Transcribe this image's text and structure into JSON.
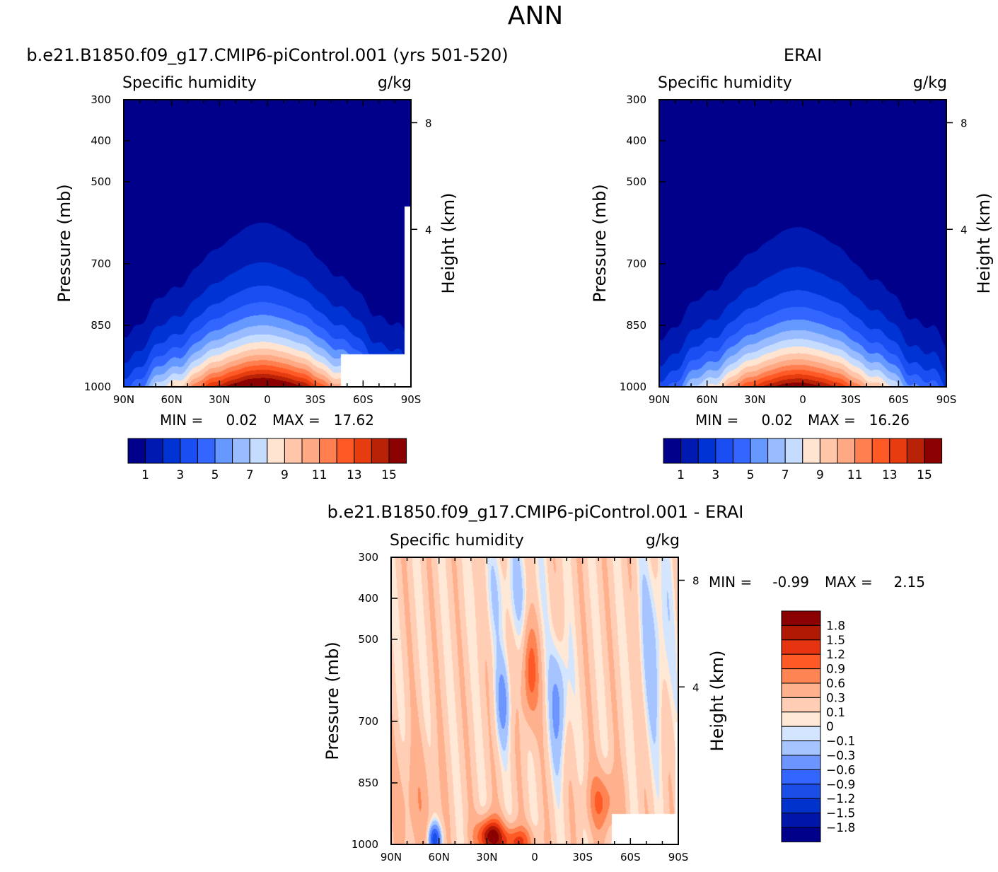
{
  "figure_title": "ANN",
  "colors": {
    "abs_palette": [
      "#00008b",
      "#0019b0",
      "#0033d4",
      "#1a4df2",
      "#3366ff",
      "#6699ff",
      "#99bbff",
      "#c6dcff",
      "#ffe4d2",
      "#ffc6aa",
      "#ffa884",
      "#ff7f50",
      "#ff5a26",
      "#e63c0f",
      "#b82207",
      "#8b0000"
    ],
    "diff_palette": [
      "#00008b",
      "#0016a8",
      "#0033cc",
      "#1a4ee6",
      "#3366ff",
      "#6c95ff",
      "#a6c4ff",
      "#d4e6ff",
      "#ffe8d6",
      "#ffceb4",
      "#ffb08c",
      "#ff8454",
      "#ff5a26",
      "#e63410",
      "#b01a05",
      "#8b0000"
    ]
  },
  "chart_data": [
    {
      "type": "heatmap",
      "panel": "model",
      "case_title": "b.e21.B1850.f09_g17.CMIP6-piControl.001 (yrs 501-520)",
      "variable": "Specific humidity",
      "units": "g/kg",
      "ylabel": "Pressure (mb)",
      "y2label": "Height (km)",
      "x_ticks": [
        "90N",
        "60N",
        "30N",
        "0",
        "30S",
        "60S",
        "90S"
      ],
      "y_ticks": [
        "300",
        "400",
        "500",
        "700",
        "850",
        "1000"
      ],
      "y2_ticks": [
        "8",
        "4"
      ],
      "xlim": [
        90,
        -90
      ],
      "ylim_mb": [
        1000,
        300
      ],
      "min_label": "MIN =",
      "min_value": "0.02",
      "max_label": "MAX =",
      "max_value": "17.62",
      "levels": [
        1,
        2,
        3,
        4,
        5,
        6,
        7,
        8,
        9,
        10,
        11,
        12,
        13,
        14,
        15
      ],
      "colorbar_labels": [
        "1",
        "3",
        "5",
        "7",
        "9",
        "11",
        "13",
        "15"
      ],
      "peak": 17.62,
      "missing_region": true
    },
    {
      "type": "heatmap",
      "panel": "obs",
      "case_title": "ERAI",
      "variable": "Specific humidity",
      "units": "g/kg",
      "ylabel": "Pressure (mb)",
      "y2label": "Height (km)",
      "x_ticks": [
        "90N",
        "60N",
        "30N",
        "0",
        "30S",
        "60S",
        "90S"
      ],
      "y_ticks": [
        "300",
        "400",
        "500",
        "700",
        "850",
        "1000"
      ],
      "y2_ticks": [
        "8",
        "4"
      ],
      "xlim": [
        90,
        -90
      ],
      "ylim_mb": [
        1000,
        300
      ],
      "min_label": "MIN =",
      "min_value": "0.02",
      "max_label": "MAX =",
      "max_value": "16.26",
      "levels": [
        1,
        2,
        3,
        4,
        5,
        6,
        7,
        8,
        9,
        10,
        11,
        12,
        13,
        14,
        15
      ],
      "colorbar_labels": [
        "1",
        "3",
        "5",
        "7",
        "9",
        "11",
        "13",
        "15"
      ],
      "peak": 16.26,
      "missing_region": false
    },
    {
      "type": "heatmap",
      "panel": "diff",
      "case_title": "b.e21.B1850.f09_g17.CMIP6-piControl.001 - ERAI",
      "variable": "Specific humidity",
      "units": "g/kg",
      "ylabel": "Pressure (mb)",
      "y2label": "Height (km)",
      "x_ticks": [
        "90N",
        "60N",
        "30N",
        "0",
        "30S",
        "60S",
        "90S"
      ],
      "y_ticks": [
        "300",
        "400",
        "500",
        "700",
        "850",
        "1000"
      ],
      "y2_ticks": [
        "8",
        "4"
      ],
      "xlim": [
        90,
        -90
      ],
      "ylim_mb": [
        1000,
        300
      ],
      "min_label": "MIN =",
      "min_value": "-0.99",
      "max_label": "MAX =",
      "max_value": "2.15",
      "levels": [
        -1.8,
        -1.5,
        -1.2,
        -0.9,
        -0.6,
        -0.3,
        -0.1,
        0,
        0.1,
        0.3,
        0.6,
        0.9,
        1.2,
        1.5,
        1.8
      ],
      "colorbar_labels": [
        "1.8",
        "1.5",
        "1.2",
        "0.9",
        "0.6",
        "0.3",
        "0.1",
        "0",
        "−0.1",
        "−0.3",
        "−0.6",
        "−0.9",
        "−1.2",
        "−1.5",
        "−1.8"
      ]
    }
  ]
}
